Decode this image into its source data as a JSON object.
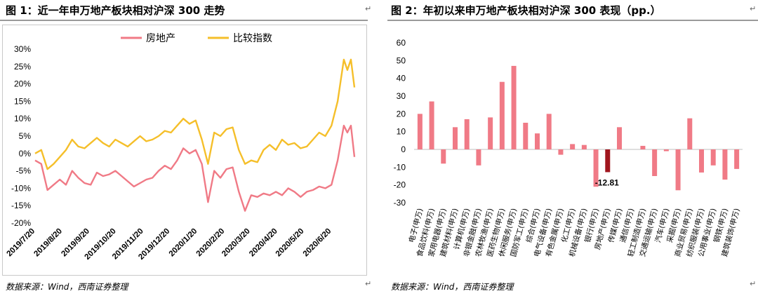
{
  "panel1": {
    "title": "图 1：近一年申万地产板块相对沪深 300 走势",
    "source": "数据来源：Wind，西南证券整理"
  },
  "panel2": {
    "title": "图 2：年初以来申万地产板块相对沪深 300 表现（pp.）",
    "source": "数据来源：Wind，西南证券整理"
  },
  "return_mark": "↵",
  "chart_data": [
    {
      "type": "line",
      "title": "",
      "ylim": [
        -20,
        30
      ],
      "yticks": [
        "-20%",
        "-15%",
        "-10%",
        "-5%",
        "0%",
        "5%",
        "10%",
        "15%",
        "20%",
        "25%",
        "30%"
      ],
      "ytick_values": [
        -20,
        -15,
        -10,
        -5,
        0,
        5,
        10,
        15,
        20,
        25,
        30
      ],
      "xticks": [
        "2019/7/20",
        "2019/8/20",
        "2019/9/20",
        "2019/10/20",
        "2019/11/20",
        "2019/12/20",
        "2020/1/20",
        "2020/2/20",
        "2020/3/20",
        "2020/4/20",
        "2020/5/20",
        "2020/6/20"
      ],
      "legend": "top-center",
      "series": [
        {
          "name": "房地产",
          "color": "#f07a86",
          "x": [
            "2019/7/20",
            "2019/7/27",
            "2019/8/3",
            "2019/8/10",
            "2019/8/17",
            "2019/8/24",
            "2019/8/31",
            "2019/9/7",
            "2019/9/14",
            "2019/9/21",
            "2019/9/28",
            "2019/10/5",
            "2019/10/12",
            "2019/10/19",
            "2019/10/26",
            "2019/11/2",
            "2019/11/9",
            "2019/11/16",
            "2019/11/23",
            "2019/11/30",
            "2019/12/7",
            "2019/12/14",
            "2019/12/21",
            "2019/12/28",
            "2020/1/4",
            "2020/1/11",
            "2020/1/18",
            "2020/1/25",
            "2020/2/1",
            "2020/2/8",
            "2020/2/15",
            "2020/2/22",
            "2020/2/29",
            "2020/3/7",
            "2020/3/14",
            "2020/3/21",
            "2020/3/28",
            "2020/4/4",
            "2020/4/11",
            "2020/4/18",
            "2020/4/25",
            "2020/5/2",
            "2020/5/9",
            "2020/5/16",
            "2020/5/23",
            "2020/5/30",
            "2020/6/6",
            "2020/6/13",
            "2020/6/20",
            "2020/6/27",
            "2020/7/4",
            "2020/7/8",
            "2020/7/12",
            "2020/7/16"
          ],
          "values": [
            -2,
            -3,
            -10.5,
            -9,
            -7.5,
            -9,
            -5,
            -7,
            -8.5,
            -9,
            -5.5,
            -6.5,
            -6,
            -5,
            -6.5,
            -8,
            -9.5,
            -8.5,
            -7.5,
            -7,
            -5,
            -3.5,
            -4.5,
            -2,
            1.5,
            0,
            1,
            -3,
            -14,
            -5,
            -7,
            -4.5,
            -4,
            -11,
            -16.5,
            -12,
            -12.5,
            -11.5,
            -12,
            -11,
            -12,
            -10,
            -11,
            -12.5,
            -11,
            -10.5,
            -9.5,
            -10,
            -9,
            -2,
            8,
            6,
            8,
            -1
          ]
        },
        {
          "name": "比较指数",
          "color": "#f5bf2a",
          "x": [
            "2019/7/20",
            "2019/7/27",
            "2019/8/3",
            "2019/8/10",
            "2019/8/17",
            "2019/8/24",
            "2019/8/31",
            "2019/9/7",
            "2019/9/14",
            "2019/9/21",
            "2019/9/28",
            "2019/10/5",
            "2019/10/12",
            "2019/10/19",
            "2019/10/26",
            "2019/11/2",
            "2019/11/9",
            "2019/11/16",
            "2019/11/23",
            "2019/11/30",
            "2019/12/7",
            "2019/12/14",
            "2019/12/21",
            "2019/12/28",
            "2020/1/4",
            "2020/1/11",
            "2020/1/18",
            "2020/1/25",
            "2020/2/1",
            "2020/2/8",
            "2020/2/15",
            "2020/2/22",
            "2020/2/29",
            "2020/3/7",
            "2020/3/14",
            "2020/3/21",
            "2020/3/28",
            "2020/4/4",
            "2020/4/11",
            "2020/4/18",
            "2020/4/25",
            "2020/5/2",
            "2020/5/9",
            "2020/5/16",
            "2020/5/23",
            "2020/5/30",
            "2020/6/6",
            "2020/6/13",
            "2020/6/20",
            "2020/6/27",
            "2020/7/4",
            "2020/7/8",
            "2020/7/12",
            "2020/7/16"
          ],
          "values": [
            0,
            1,
            -4.5,
            -3,
            -1,
            1,
            4,
            2,
            1.5,
            3,
            4.5,
            3,
            2,
            4,
            3,
            2,
            3.5,
            5,
            3.5,
            4,
            5,
            6.5,
            6,
            8,
            10,
            8.5,
            9.5,
            4,
            -3,
            6,
            5,
            7,
            7.5,
            1,
            -3,
            -2,
            -2.5,
            1,
            2.5,
            1,
            4,
            2.5,
            3,
            1.5,
            2,
            4,
            6,
            5,
            8,
            15,
            27,
            24,
            27,
            19
          ]
        }
      ]
    },
    {
      "type": "bar",
      "title": "",
      "ylim": [
        -30,
        60
      ],
      "ytick_values": [
        -30,
        -20,
        -10,
        0,
        10,
        20,
        30,
        40,
        50,
        60
      ],
      "categories": [
        "电子(申万)",
        "食品饮料(申万)",
        "家用电器(申万)",
        "建筑材料(申万)",
        "计算机(申万)",
        "非银金融(申万)",
        "农林牧渔(申万)",
        "医药生物(申万)",
        "休闲服务(申万)",
        "国防军工(申万)",
        "综合(申万)",
        "电气设备(申万)",
        "有色金属(申万)",
        "化工(申万)",
        "机械设备(申万)",
        "银行(申万)",
        "房地产(申万)",
        "传媒(申万)",
        "通信(申万)",
        "轻工制造(申万)",
        "交通运输(申万)",
        "汽车(申万)",
        "采掘(申万)",
        "商业贸易(申万)",
        "纺织服装(申万)",
        "公用事业(申万)",
        "钢铁(申万)",
        "建筑装饰(申万)"
      ],
      "values": [
        20,
        27,
        -8,
        12.5,
        17,
        -9,
        18,
        38,
        47,
        15,
        9,
        20,
        -3,
        3,
        2.5,
        -21,
        -12.81,
        12.5,
        0,
        2,
        -15,
        -1,
        -23,
        17.5,
        -13,
        -9,
        -17,
        -11
      ],
      "highlight_index": 16,
      "highlight_label": "-12.81",
      "colors": {
        "bar": "#f07a86",
        "highlight": "#a0161e"
      }
    }
  ]
}
